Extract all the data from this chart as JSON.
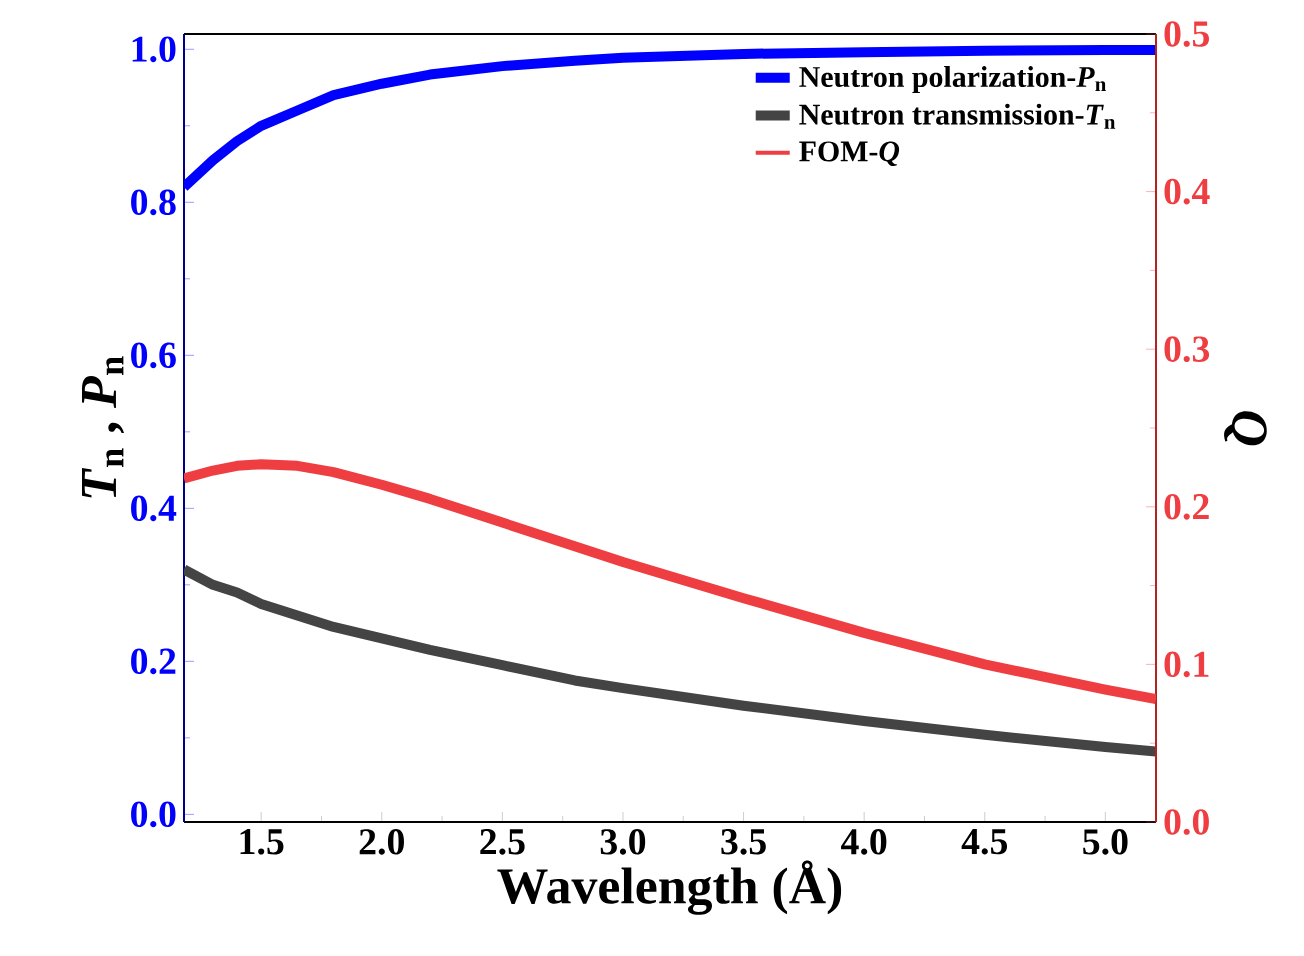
{
  "chart_data": {
    "type": "line",
    "xlabel": "Wavelength (Å)",
    "ylabel": "*T*$_{n}$ , *P*$_{n}$",
    "y2label": "Q",
    "xlim": [
      1.18,
      5.21
    ],
    "ylim": [
      -0.01,
      1.02
    ],
    "y2lim": [
      0,
      0.5
    ],
    "xticks": [
      1.5,
      {
        "value": 2,
        "label": "2.0"
      },
      2.5,
      {
        "value": 3,
        "label": "3.0"
      },
      3.5,
      {
        "value": 4,
        "label": "4.0"
      },
      4.5,
      {
        "value": 5,
        "label": "5.0"
      }
    ],
    "yticks": [
      {
        "value": 0,
        "label": "0.0"
      },
      0.2,
      0.4,
      0.6,
      0.8,
      {
        "value": 1,
        "label": "1.0"
      }
    ],
    "y2ticks": [
      {
        "value": 0,
        "label": "0.0"
      },
      0.1,
      0.2,
      0.3,
      0.4,
      0.5
    ],
    "legend": "top right",
    "grid": false,
    "x": [
      1.18,
      1.3,
      1.4,
      1.5,
      1.65,
      1.8,
      2.0,
      2.2,
      2.5,
      2.8,
      3.0,
      3.5,
      4.0,
      4.5,
      5.0,
      5.21
    ],
    "series": [
      {
        "name": "Neutron polarization-*P*$_{n}$",
        "color": "#0000ff",
        "values": [
          0.82,
          0.855,
          0.88,
          0.9,
          0.92,
          0.94,
          0.955,
          0.967,
          0.978,
          0.985,
          0.989,
          0.994,
          0.996,
          0.998,
          0.999,
          0.999
        ]
      },
      {
        "name": "Neutron transmission-*T*$_{n}$",
        "color": "#444444",
        "values": [
          0.32,
          0.3,
          0.29,
          0.275,
          0.26,
          0.245,
          0.23,
          0.215,
          0.195,
          0.175,
          0.165,
          0.142,
          0.122,
          0.104,
          0.088,
          0.082
        ]
      },
      {
        "name": "FOM-*Q*",
        "color": "#ef3e42",
        "axis": "y2",
        "values": [
          0.218,
          0.223,
          0.226,
          0.227,
          0.226,
          0.222,
          0.214,
          0.205,
          0.19,
          0.175,
          0.165,
          0.142,
          0.12,
          0.1,
          0.084,
          0.078
        ]
      }
    ]
  }
}
